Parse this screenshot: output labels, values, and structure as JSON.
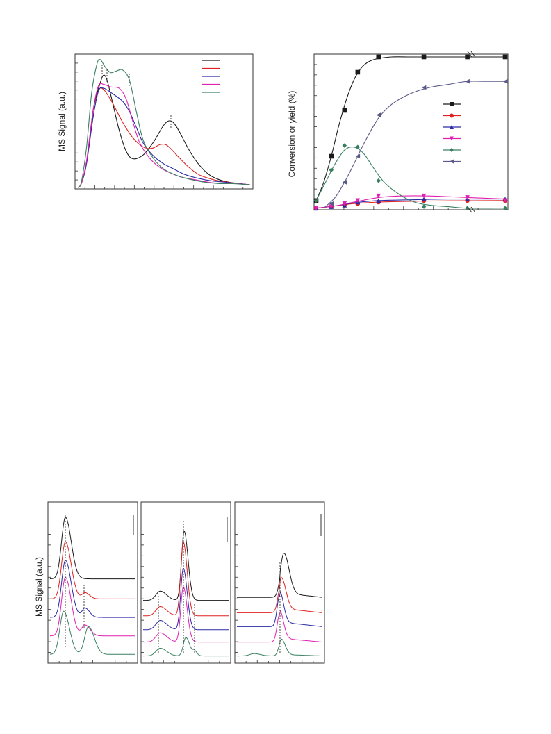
{
  "chart_data": [
    {
      "id": "tpd-top-left",
      "type": "line",
      "title": "",
      "ylabel": "MS Signal (a.u.)",
      "xlabel": "",
      "ylim": [
        0,
        1
      ],
      "xlim": [
        0,
        1
      ],
      "legend": "top-right (labels not printed)",
      "series": [
        {
          "color": "#1a1a1a",
          "x": [
            0,
            0.02,
            0.05,
            0.09,
            0.13,
            0.15,
            0.17,
            0.2,
            0.24,
            0.28,
            0.32,
            0.38,
            0.44,
            0.5,
            0.54,
            0.58,
            0.64,
            0.7,
            0.76,
            0.82,
            0.88,
            0.94,
            1.0
          ],
          "y": [
            0,
            0.03,
            0.18,
            0.6,
            0.8,
            0.86,
            0.82,
            0.66,
            0.44,
            0.28,
            0.22,
            0.25,
            0.35,
            0.48,
            0.51,
            0.45,
            0.3,
            0.18,
            0.1,
            0.06,
            0.04,
            0.03,
            0.02
          ]
        },
        {
          "color": "#e02020",
          "x": [
            0,
            0.02,
            0.05,
            0.09,
            0.12,
            0.15,
            0.2,
            0.26,
            0.32,
            0.38,
            0.43,
            0.48,
            0.52,
            0.58,
            0.64,
            0.7,
            0.76,
            0.82,
            0.88,
            0.94,
            1.0
          ],
          "y": [
            0,
            0.03,
            0.18,
            0.55,
            0.74,
            0.75,
            0.65,
            0.5,
            0.38,
            0.31,
            0.3,
            0.33,
            0.32,
            0.24,
            0.16,
            0.1,
            0.07,
            0.05,
            0.04,
            0.03,
            0.02
          ]
        },
        {
          "color": "#2a2aa8",
          "x": [
            0,
            0.02,
            0.05,
            0.09,
            0.12,
            0.15,
            0.2,
            0.26,
            0.3,
            0.34,
            0.38,
            0.44,
            0.5,
            0.56,
            0.62,
            0.7,
            0.78,
            0.86,
            0.94,
            1.0
          ],
          "y": [
            0,
            0.03,
            0.18,
            0.55,
            0.74,
            0.76,
            0.72,
            0.66,
            0.58,
            0.46,
            0.34,
            0.24,
            0.18,
            0.14,
            0.1,
            0.07,
            0.05,
            0.04,
            0.03,
            0.02
          ]
        },
        {
          "color": "#e020b0",
          "x": [
            0,
            0.02,
            0.05,
            0.09,
            0.12,
            0.15,
            0.19,
            0.24,
            0.28,
            0.32,
            0.36,
            0.42,
            0.48,
            0.54,
            0.6,
            0.68,
            0.76,
            0.84,
            0.92,
            1.0
          ],
          "y": [
            0,
            0.03,
            0.2,
            0.6,
            0.78,
            0.79,
            0.77,
            0.76,
            0.68,
            0.5,
            0.34,
            0.22,
            0.15,
            0.11,
            0.08,
            0.06,
            0.04,
            0.03,
            0.03,
            0.02
          ]
        },
        {
          "color": "#3a8060",
          "x": [
            0,
            0.02,
            0.05,
            0.08,
            0.11,
            0.13,
            0.16,
            0.19,
            0.22,
            0.26,
            0.3,
            0.34,
            0.38,
            0.44,
            0.5,
            0.58,
            0.66,
            0.74,
            0.82,
            0.9,
            1.0
          ],
          "y": [
            0,
            0.04,
            0.3,
            0.72,
            0.94,
            0.98,
            0.92,
            0.88,
            0.89,
            0.9,
            0.82,
            0.58,
            0.36,
            0.22,
            0.14,
            0.09,
            0.06,
            0.04,
            0.03,
            0.03,
            0.02
          ]
        }
      ]
    },
    {
      "id": "conversion-top-right",
      "type": "line",
      "title": "",
      "ylabel": "Conversion or yield (%)",
      "xlabel": "",
      "ylim": [
        0,
        100
      ],
      "xlim": [
        0,
        1
      ],
      "legend": "right (labels not printed)",
      "series": [
        {
          "color": "#1a1a1a",
          "marker": "square",
          "points_x": [
            0.0,
            0.08,
            0.15,
            0.22,
            0.33,
            0.57,
            0.8,
            1.0
          ],
          "points_y": [
            6,
            35,
            65,
            90,
            100,
            100,
            100,
            100
          ],
          "x": [
            0.0,
            0.04,
            0.08,
            0.12,
            0.16,
            0.2,
            0.24,
            0.28,
            0.33,
            0.4,
            0.5,
            0.6,
            0.8,
            1.0
          ],
          "y": [
            6,
            18,
            35,
            55,
            72,
            85,
            93,
            97,
            99,
            100,
            100,
            100,
            100,
            100
          ]
        },
        {
          "color": "#e02020",
          "marker": "circle",
          "points_x": [
            0.0,
            0.08,
            0.15,
            0.22,
            0.33,
            0.57,
            0.8,
            1.0
          ],
          "points_y": [
            1,
            2,
            3,
            4,
            5,
            6,
            6,
            6
          ],
          "x": [
            0.0,
            0.1,
            0.2,
            0.33,
            0.5,
            0.7,
            1.0
          ],
          "y": [
            1,
            2.5,
            4,
            5,
            5.5,
            5.8,
            6
          ]
        },
        {
          "color": "#2a2aa8",
          "marker": "triangle-up",
          "points_x": [
            0.0,
            0.08,
            0.15,
            0.22,
            0.33,
            0.57,
            0.8,
            1.0
          ],
          "points_y": [
            1,
            2,
            3,
            5,
            6,
            7,
            7,
            7
          ],
          "x": [
            0.0,
            0.1,
            0.2,
            0.33,
            0.5,
            0.7,
            1.0
          ],
          "y": [
            1,
            2.5,
            4.5,
            6,
            6.5,
            7,
            7
          ]
        },
        {
          "color": "#e020b0",
          "marker": "triangle-down",
          "points_x": [
            0.0,
            0.08,
            0.15,
            0.22,
            0.33,
            0.57,
            0.8,
            1.0
          ],
          "points_y": [
            1,
            2,
            4,
            6,
            9,
            9,
            8,
            6
          ],
          "x": [
            0.0,
            0.1,
            0.2,
            0.33,
            0.45,
            0.6,
            0.8,
            1.0
          ],
          "y": [
            1,
            2.5,
            5,
            8,
            9,
            9,
            8,
            7
          ]
        },
        {
          "color": "#3a8060",
          "marker": "diamond",
          "points_x": [
            0.0,
            0.08,
            0.15,
            0.22,
            0.33,
            0.57,
            0.8,
            1.0
          ],
          "points_y": [
            6,
            26,
            42,
            41,
            19,
            2,
            1,
            1
          ],
          "x": [
            0.0,
            0.05,
            0.1,
            0.15,
            0.2,
            0.25,
            0.3,
            0.36,
            0.44,
            0.52,
            0.6,
            0.7,
            0.8,
            1.0
          ],
          "y": [
            6,
            18,
            30,
            39,
            41,
            37,
            28,
            18,
            10,
            5,
            3,
            2,
            1,
            1
          ]
        },
        {
          "color": "#5a5a8a",
          "marker": "triangle-left",
          "points_x": [
            0.08,
            0.15,
            0.22,
            0.33,
            0.57,
            0.8,
            1.0
          ],
          "points_y": [
            4,
            18,
            35,
            62,
            80,
            84,
            84
          ],
          "x": [
            0.04,
            0.1,
            0.15,
            0.2,
            0.26,
            0.33,
            0.4,
            0.5,
            0.6,
            0.7,
            0.8,
            0.9,
            1.0
          ],
          "y": [
            1,
            8,
            18,
            30,
            45,
            60,
            69,
            76,
            80,
            82,
            84,
            84,
            84
          ]
        }
      ]
    },
    {
      "id": "tpd-bottom-1",
      "type": "line",
      "title": "",
      "ylabel": "MS Signal (a.u.)",
      "xlabel": "",
      "ylim": [
        0,
        1
      ],
      "xlim": [
        0,
        1
      ],
      "legend": "",
      "series": [
        {
          "color": "#1a1a1a",
          "offset": 0.52,
          "peaks": [
            [
              0.18,
              0.4,
              0.045
            ]
          ],
          "tail": 0.0
        },
        {
          "color": "#e02020",
          "offset": 0.39,
          "peaks": [
            [
              0.18,
              0.37,
              0.045
            ],
            [
              0.41,
              0.04,
              0.035
            ]
          ],
          "tail": 0.0
        },
        {
          "color": "#2a2aa8",
          "offset": 0.27,
          "peaks": [
            [
              0.18,
              0.37,
              0.045
            ],
            [
              0.41,
              0.06,
              0.035
            ]
          ],
          "tail": 0.0
        },
        {
          "color": "#e020b0",
          "offset": 0.15,
          "peaks": [
            [
              0.18,
              0.38,
              0.045
            ],
            [
              0.41,
              0.07,
              0.04
            ]
          ],
          "tail": 0.0
        },
        {
          "color": "#3a8060",
          "offset": 0.03,
          "peaks": [
            [
              0.16,
              0.28,
              0.045
            ],
            [
              0.45,
              0.18,
              0.045
            ]
          ],
          "tail": 0.0
        }
      ]
    },
    {
      "id": "tpd-bottom-2",
      "type": "line",
      "title": "",
      "ylabel": "",
      "xlabel": "",
      "ylim": [
        0,
        1
      ],
      "xlim": [
        0,
        1
      ],
      "legend": "",
      "series": [
        {
          "color": "#1a1a1a",
          "offset": 0.38,
          "peaks": [
            [
              0.2,
              0.06,
              0.05
            ],
            [
              0.48,
              0.45,
              0.03
            ]
          ],
          "tail": 0.0
        },
        {
          "color": "#e02020",
          "offset": 0.28,
          "peaks": [
            [
              0.2,
              0.06,
              0.05
            ],
            [
              0.47,
              0.48,
              0.03
            ]
          ],
          "tail": 0.0
        },
        {
          "color": "#2a2aa8",
          "offset": 0.19,
          "peaks": [
            [
              0.2,
              0.06,
              0.05
            ],
            [
              0.47,
              0.4,
              0.03
            ]
          ],
          "tail": 0.0
        },
        {
          "color": "#e020b0",
          "offset": 0.11,
          "peaks": [
            [
              0.2,
              0.06,
              0.05
            ],
            [
              0.47,
              0.36,
              0.03
            ]
          ],
          "tail": 0.0
        },
        {
          "color": "#3a8060",
          "offset": 0.02,
          "peaks": [
            [
              0.2,
              0.05,
              0.05
            ],
            [
              0.5,
              0.12,
              0.03
            ],
            [
              0.6,
              0.03,
              0.02
            ]
          ],
          "tail": 0.0
        }
      ]
    },
    {
      "id": "tpd-bottom-3",
      "type": "line",
      "title": "",
      "ylabel": "",
      "xlabel": "",
      "ylim": [
        0,
        1
      ],
      "xlim": [
        0,
        1
      ],
      "legend": "",
      "series": [
        {
          "color": "#1a1a1a",
          "offset": 0.4,
          "peaks": [
            [
              0.55,
              0.26,
              0.04
            ]
          ],
          "tail": 0.06
        },
        {
          "color": "#e02020",
          "offset": 0.3,
          "peaks": [
            [
              0.52,
              0.2,
              0.035
            ]
          ],
          "tail": 0.06
        },
        {
          "color": "#2a2aa8",
          "offset": 0.21,
          "peaks": [
            [
              0.5,
              0.2,
              0.03
            ]
          ],
          "tail": 0.06
        },
        {
          "color": "#e020b0",
          "offset": 0.11,
          "peaks": [
            [
              0.5,
              0.18,
              0.03
            ]
          ],
          "tail": 0.05
        },
        {
          "color": "#3a8060",
          "offset": 0.02,
          "peaks": [
            [
              0.2,
              0.015,
              0.05
            ],
            [
              0.52,
              0.1,
              0.03
            ]
          ],
          "tail": 0.02
        }
      ]
    }
  ]
}
